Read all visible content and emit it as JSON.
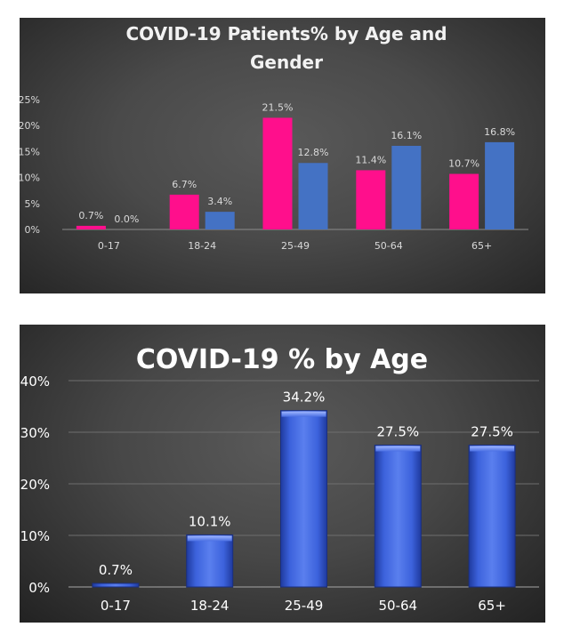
{
  "chart_data": [
    {
      "type": "bar",
      "title": "COVID-19 Patients% by Age and Gender",
      "title_lines": [
        "COVID-19 Patients% by Age and",
        "Gender"
      ],
      "categories": [
        "0-17",
        "18-24",
        "25-49",
        "50-64",
        "65+"
      ],
      "series": [
        {
          "values": [
            0.7,
            6.7,
            21.5,
            11.4,
            10.7
          ],
          "labels": [
            "0.7%",
            "6.7%",
            "21.5%",
            "11.4%",
            "10.7%"
          ],
          "color": "#ff0f8c"
        },
        {
          "values": [
            0.0,
            3.4,
            12.8,
            16.1,
            16.8
          ],
          "labels": [
            "0.0%",
            "3.4%",
            "12.8%",
            "16.1%",
            "16.8%"
          ],
          "color": "#4472c4"
        }
      ],
      "ylim": [
        0,
        25
      ],
      "yticks": [
        "0%",
        "5%",
        "10%",
        "15%",
        "20%",
        "25%"
      ],
      "grid": false,
      "legend": "none"
    },
    {
      "type": "bar",
      "title": "COVID-19 % by Age",
      "categories": [
        "0-17",
        "18-24",
        "25-49",
        "50-64",
        "65+"
      ],
      "series": [
        {
          "values": [
            0.7,
            10.1,
            34.2,
            27.5,
            27.5
          ],
          "labels": [
            "0.7%",
            "10.1%",
            "34.2%",
            "27.5%",
            "27.5%"
          ],
          "color": "#3f63d9"
        }
      ],
      "ylim": [
        0,
        40
      ],
      "yticks": [
        "0%",
        "10%",
        "20%",
        "30%",
        "40%"
      ],
      "grid": true,
      "legend": "none"
    }
  ]
}
